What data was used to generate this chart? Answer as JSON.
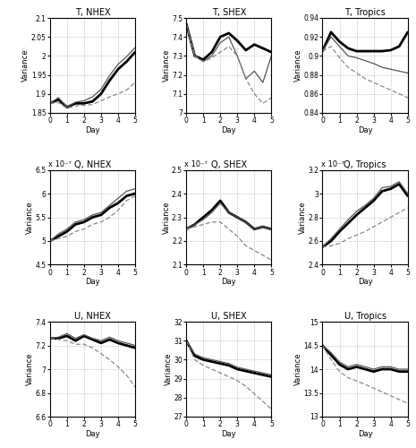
{
  "titles": [
    [
      "T, NHEX",
      "T, SHEX",
      "T, Tropics"
    ],
    [
      "Q, NHEX",
      "Q, SHEX",
      "Q, Tropics"
    ],
    [
      "U, NHEX",
      "U, SHEX",
      "U, Tropics"
    ]
  ],
  "xlabel": "Day",
  "ylabel": "Variance",
  "scale_labels": [
    [
      null,
      null,
      null
    ],
    [
      "x 10⁻⁷",
      "x 10⁻⁷",
      "x 10⁻⁷"
    ],
    [
      null,
      null,
      null
    ]
  ],
  "ylims": [
    [
      [
        1.85,
        2.1
      ],
      [
        7.0,
        7.5
      ],
      [
        0.84,
        0.94
      ]
    ],
    [
      [
        4.5,
        6.5
      ],
      [
        2.1,
        2.5
      ],
      [
        2.4,
        3.2
      ]
    ],
    [
      [
        6.6,
        7.4
      ],
      [
        27,
        32
      ],
      [
        13,
        15
      ]
    ]
  ],
  "yticks": [
    [
      [
        1.85,
        1.9,
        1.95,
        2.0,
        2.05,
        2.1
      ],
      [
        7.0,
        7.1,
        7.2,
        7.3,
        7.4,
        7.5
      ],
      [
        0.84,
        0.86,
        0.88,
        0.9,
        0.92,
        0.94
      ]
    ],
    [
      [
        4.5,
        5.0,
        5.5,
        6.0,
        6.5
      ],
      [
        2.1,
        2.2,
        2.3,
        2.4,
        2.5
      ],
      [
        2.4,
        2.6,
        2.8,
        3.0,
        3.2
      ]
    ],
    [
      [
        6.6,
        6.8,
        7.0,
        7.2,
        7.4
      ],
      [
        27,
        28,
        29,
        30,
        31,
        32
      ],
      [
        13,
        13.5,
        14,
        14.5,
        15
      ]
    ]
  ],
  "ytick_labels": [
    [
      [
        "1.85",
        "1.9",
        "1.95",
        "2",
        "2.05",
        "2.1"
      ],
      [
        "7",
        "7.1",
        "7.2",
        "7.3",
        "7.4",
        "7.5"
      ],
      [
        "0.84",
        "0.86",
        "0.88",
        "0.9",
        "0.92",
        "0.94"
      ]
    ],
    [
      [
        "4.5",
        "5",
        "5.5",
        "6",
        "6.5"
      ],
      [
        "2.1",
        "2.2",
        "2.3",
        "2.4",
        "2.5"
      ],
      [
        "2.4",
        "2.6",
        "2.8",
        "3",
        "3.2"
      ]
    ],
    [
      [
        "6.6",
        "6.8",
        "7",
        "7.2",
        "7.4"
      ],
      [
        "27",
        "28",
        "29",
        "30",
        "31",
        "32"
      ],
      [
        "13",
        "13.5",
        "14",
        "14.5",
        "15"
      ]
    ]
  ],
  "days": [
    0,
    0.5,
    1.0,
    1.5,
    2.0,
    2.5,
    3.0,
    3.5,
    4.0,
    4.5,
    5.0
  ],
  "data": {
    "T_NHEX": {
      "control": [
        1.875,
        1.885,
        1.865,
        1.875,
        1.875,
        1.88,
        1.9,
        1.935,
        1.965,
        1.985,
        2.01
      ],
      "perturb": [
        1.875,
        1.89,
        1.865,
        1.878,
        1.882,
        1.892,
        1.912,
        1.948,
        1.978,
        1.998,
        2.022
      ],
      "covar": [
        1.875,
        1.877,
        1.862,
        1.868,
        1.87,
        1.872,
        1.882,
        1.892,
        1.9,
        1.91,
        1.93
      ]
    },
    "T_SHEX": {
      "control": [
        7.47,
        7.3,
        7.28,
        7.32,
        7.4,
        7.42,
        7.38,
        7.33,
        7.36,
        7.34,
        7.32
      ],
      "perturb": [
        7.47,
        7.3,
        7.27,
        7.3,
        7.37,
        7.4,
        7.3,
        7.18,
        7.22,
        7.16,
        7.3
      ],
      "covar": [
        7.47,
        7.3,
        7.27,
        7.29,
        7.32,
        7.35,
        7.3,
        7.18,
        7.1,
        7.05,
        7.08
      ]
    },
    "T_Tropics": {
      "control": [
        0.905,
        0.925,
        0.915,
        0.908,
        0.905,
        0.905,
        0.905,
        0.905,
        0.906,
        0.91,
        0.925
      ],
      "perturb": [
        0.905,
        0.92,
        0.91,
        0.9,
        0.898,
        0.895,
        0.892,
        0.888,
        0.886,
        0.884,
        0.882
      ],
      "covar": [
        0.905,
        0.91,
        0.898,
        0.888,
        0.882,
        0.876,
        0.872,
        0.868,
        0.864,
        0.86,
        0.856
      ]
    },
    "Q_NHEX": {
      "control": [
        5.0,
        5.1,
        5.2,
        5.35,
        5.4,
        5.5,
        5.55,
        5.7,
        5.8,
        5.95,
        6.0
      ],
      "perturb": [
        5.0,
        5.15,
        5.25,
        5.4,
        5.45,
        5.55,
        5.6,
        5.75,
        5.9,
        6.05,
        6.1
      ],
      "covar": [
        5.0,
        5.05,
        5.1,
        5.2,
        5.25,
        5.35,
        5.4,
        5.5,
        5.65,
        5.85,
        5.95
      ]
    },
    "Q_SHEX": {
      "control": [
        2.25,
        2.27,
        2.3,
        2.33,
        2.37,
        2.32,
        2.3,
        2.28,
        2.25,
        2.26,
        2.25
      ],
      "perturb": [
        2.25,
        2.27,
        2.29,
        2.32,
        2.36,
        2.32,
        2.3,
        2.28,
        2.25,
        2.26,
        2.25
      ],
      "covar": [
        2.25,
        2.26,
        2.27,
        2.28,
        2.28,
        2.25,
        2.22,
        2.18,
        2.16,
        2.14,
        2.12
      ]
    },
    "Q_Tropics": {
      "control": [
        2.55,
        2.6,
        2.68,
        2.75,
        2.82,
        2.88,
        2.94,
        3.02,
        3.04,
        3.08,
        2.98
      ],
      "perturb": [
        2.55,
        2.62,
        2.7,
        2.78,
        2.85,
        2.9,
        2.96,
        3.05,
        3.06,
        3.1,
        3.0
      ],
      "covar": [
        2.55,
        2.56,
        2.58,
        2.62,
        2.65,
        2.68,
        2.72,
        2.76,
        2.8,
        2.84,
        2.88
      ]
    },
    "U_NHEX": {
      "control": [
        7.26,
        7.26,
        7.28,
        7.24,
        7.28,
        7.25,
        7.22,
        7.25,
        7.22,
        7.2,
        7.18
      ],
      "perturb": [
        7.26,
        7.27,
        7.3,
        7.26,
        7.29,
        7.26,
        7.24,
        7.27,
        7.24,
        7.22,
        7.2
      ],
      "covar": [
        7.26,
        7.25,
        7.24,
        7.21,
        7.21,
        7.18,
        7.13,
        7.08,
        7.02,
        6.95,
        6.85
      ]
    },
    "U_SHEX": {
      "control": [
        31.0,
        30.2,
        30.0,
        29.9,
        29.8,
        29.7,
        29.5,
        29.4,
        29.3,
        29.2,
        29.1
      ],
      "perturb": [
        31.0,
        30.3,
        30.1,
        30.0,
        29.9,
        29.8,
        29.6,
        29.5,
        29.4,
        29.3,
        29.2
      ],
      "covar": [
        31.0,
        30.0,
        29.7,
        29.5,
        29.3,
        29.1,
        28.9,
        28.6,
        28.2,
        27.8,
        27.4
      ]
    },
    "U_Tropics": {
      "control": [
        14.5,
        14.3,
        14.1,
        14.0,
        14.05,
        14.0,
        13.95,
        14.0,
        14.0,
        13.95,
        13.95
      ],
      "perturb": [
        14.5,
        14.35,
        14.15,
        14.05,
        14.1,
        14.05,
        14.0,
        14.05,
        14.05,
        14.0,
        14.0
      ],
      "covar": [
        14.5,
        14.2,
        13.95,
        13.82,
        13.75,
        13.68,
        13.6,
        13.52,
        13.44,
        13.36,
        13.28
      ]
    }
  }
}
